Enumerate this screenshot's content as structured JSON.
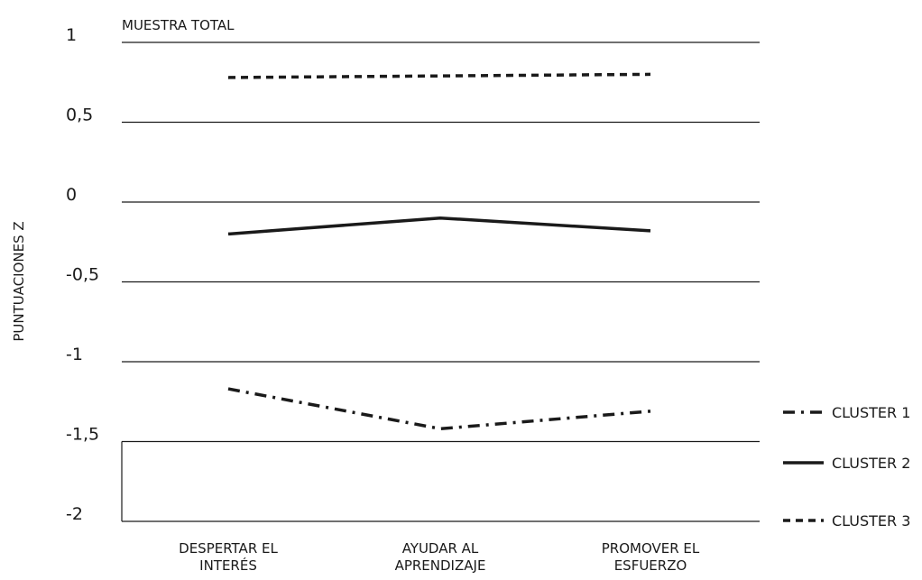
{
  "chart_data": {
    "type": "line",
    "title": "MUESTRA TOTAL",
    "xlabel": "",
    "ylabel": "PUNTUACIONES Z",
    "ylim": [
      -2,
      1
    ],
    "y_ticks": [
      1,
      0.5,
      0,
      -0.5,
      -1,
      -1.5,
      -2
    ],
    "y_tick_labels": [
      "1",
      "0,5",
      "0",
      "-0,5",
      "-1",
      "-1,5",
      "-2"
    ],
    "categories": [
      [
        "DESPERTAR EL",
        "INTERÉS"
      ],
      [
        "AYUDAR AL",
        "APRENDIZAJE"
      ],
      [
        "PROMOVER EL",
        "ESFUERZO"
      ]
    ],
    "grid": "horizontal",
    "legend_position": "right",
    "series": [
      {
        "name": "CLUSTER 1",
        "values": [
          -1.17,
          -1.42,
          -1.31
        ],
        "style": "dash-dot"
      },
      {
        "name": "CLUSTER 2",
        "values": [
          -0.2,
          -0.1,
          -0.18
        ],
        "style": "solid"
      },
      {
        "name": "CLUSTER 3",
        "values": [
          0.78,
          0.79,
          0.8
        ],
        "style": "dashed"
      }
    ],
    "colors": {
      "line": "#1a1a1a",
      "grid": "#1a1a1a"
    }
  }
}
